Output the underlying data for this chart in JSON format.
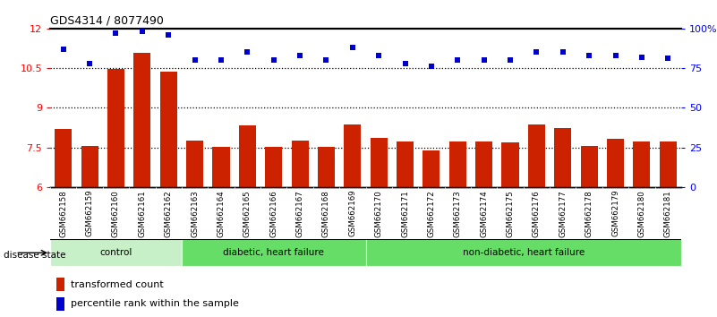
{
  "title": "GDS4314 / 8077490",
  "samples": [
    "GSM662158",
    "GSM662159",
    "GSM662160",
    "GSM662161",
    "GSM662162",
    "GSM662163",
    "GSM662164",
    "GSM662165",
    "GSM662166",
    "GSM662167",
    "GSM662168",
    "GSM662169",
    "GSM662170",
    "GSM662171",
    "GSM662172",
    "GSM662173",
    "GSM662174",
    "GSM662175",
    "GSM662176",
    "GSM662177",
    "GSM662178",
    "GSM662179",
    "GSM662180",
    "GSM662181"
  ],
  "bar_values": [
    8.2,
    7.55,
    10.47,
    11.07,
    10.38,
    7.77,
    7.52,
    8.35,
    7.52,
    7.77,
    7.52,
    8.37,
    7.85,
    7.72,
    7.38,
    7.73,
    7.72,
    7.7,
    8.38,
    8.22,
    7.57,
    7.82,
    7.73,
    7.73
  ],
  "dot_values": [
    87,
    78,
    97,
    98,
    96,
    80,
    80,
    85,
    80,
    83,
    80,
    88,
    83,
    78,
    76,
    80,
    80,
    80,
    85,
    85,
    83,
    83,
    82,
    81
  ],
  "groups": [
    {
      "label": "control",
      "start": 0,
      "end": 5
    },
    {
      "label": "diabetic, heart failure",
      "start": 5,
      "end": 12
    },
    {
      "label": "non-diabetic, heart failure",
      "start": 12,
      "end": 24
    }
  ],
  "group_colors": [
    "#c8f0c8",
    "#66dd66",
    "#66dd66"
  ],
  "ylim_left": [
    6,
    12
  ],
  "ylim_right": [
    0,
    100
  ],
  "yticks_left": [
    6,
    7.5,
    9,
    10.5,
    12
  ],
  "yticks_right": [
    0,
    25,
    50,
    75,
    100
  ],
  "bar_color": "#cc2200",
  "dot_color": "#0000cc",
  "plot_bg": "#ffffff",
  "xtick_bg": "#d8d8d8",
  "disease_label": "disease state",
  "legend_bar": "transformed count",
  "legend_dot": "percentile rank within the sample",
  "dotted_lines": [
    7.5,
    9,
    10.5
  ]
}
